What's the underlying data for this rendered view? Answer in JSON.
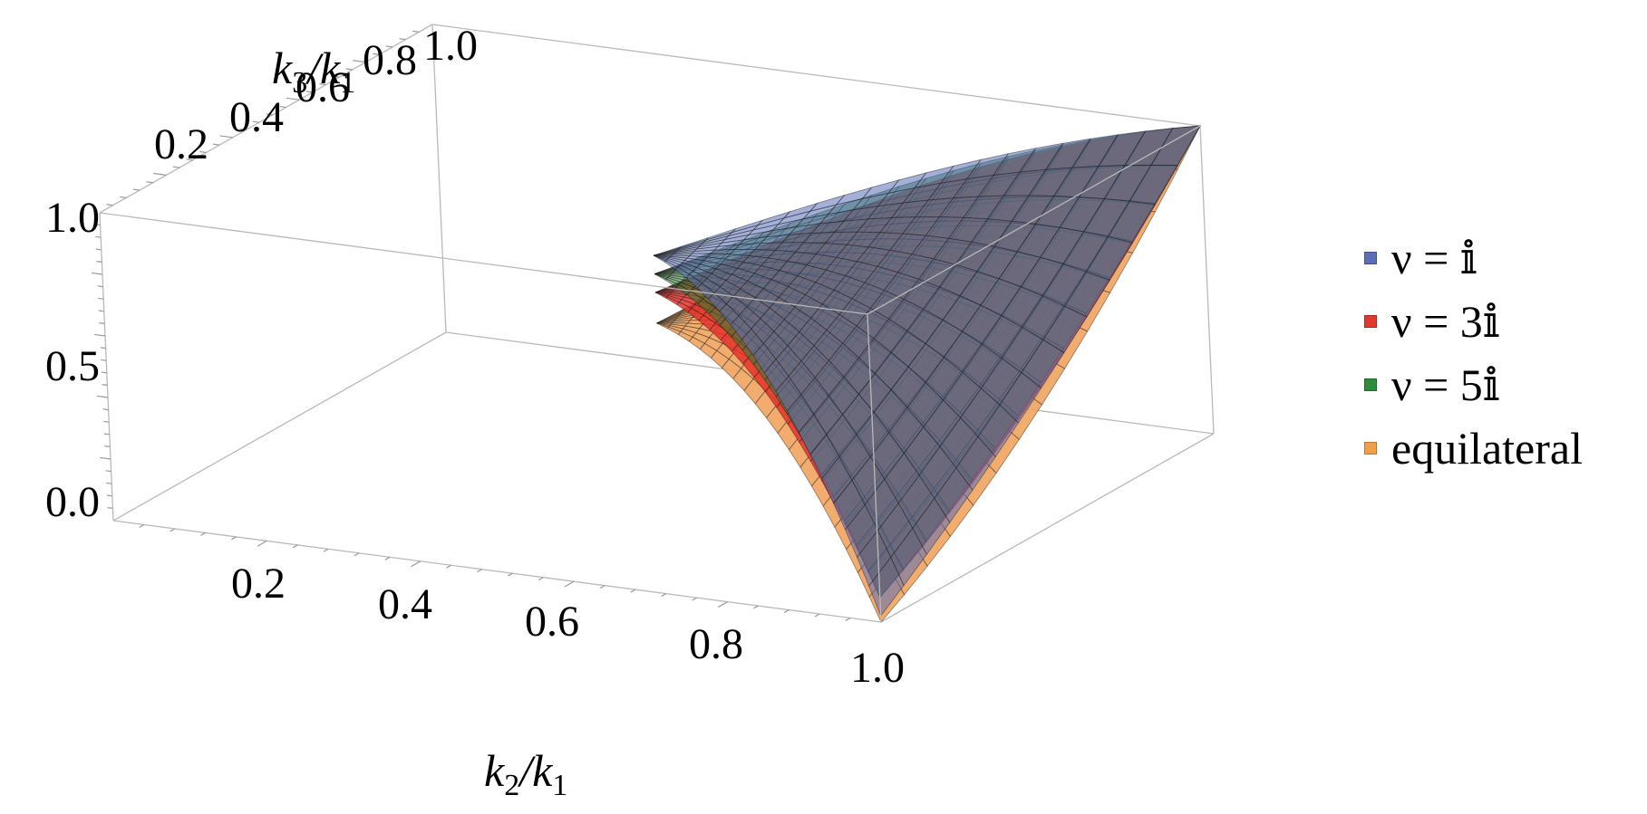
{
  "chart_data": {
    "type": "surface3d",
    "x_axis": {
      "label_main": "k",
      "label_sub1": "2",
      "label_div": "/k",
      "label_sub2": "1",
      "ticks": [
        "0.2",
        "0.4",
        "0.6",
        "0.8",
        "1.0"
      ],
      "range": [
        0,
        1
      ]
    },
    "y_axis": {
      "label_main": "k",
      "label_sub1": "3",
      "label_div": "/k",
      "label_sub2": "1",
      "ticks": [
        "0.2",
        "0.4",
        "0.6",
        "0.8",
        "1.0"
      ],
      "range": [
        0,
        1
      ]
    },
    "z_axis": {
      "ticks": [
        "0.0",
        "0.5",
        "1.0"
      ],
      "range": [
        0,
        1
      ]
    },
    "domain": "1 - k2/k1 <= k3/k1 <= k2/k1",
    "series": [
      {
        "name": "ν = 𝕚",
        "color": "#5a6fb8",
        "opacity": 0.55,
        "values": {
          "corner_x0.5_y0.5": 0.72,
          "edge_x1_y0": 0.02,
          "equilateral_x1_y1": 1.0
        }
      },
      {
        "name": "ν = 3𝕚",
        "color": "#e8302a",
        "opacity": 0.85,
        "values": {
          "corner_x0.5_y0.5": 0.6,
          "edge_x1_y0": 0.08,
          "equilateral_x1_y1": 1.0
        }
      },
      {
        "name": "ν = 5𝕚",
        "color": "#2e7d32",
        "opacity": 0.55,
        "values": {
          "corner_x0.5_y0.5": 0.66,
          "edge_x1_y0": 0.08,
          "equilateral_x1_y1": 1.0
        }
      },
      {
        "name": "equilateral",
        "color": "#f0a35e",
        "opacity": 0.9,
        "values": {
          "corner_x0.5_y0.5": 0.5,
          "edge_x1_y0": 0.0,
          "equilateral_x1_y1": 1.0
        }
      }
    ]
  },
  "legend": {
    "items": [
      {
        "label": "ν = 𝕚",
        "color": "#5a6fb8"
      },
      {
        "label": "ν = 3𝕚",
        "color": "#e03a2e"
      },
      {
        "label": "ν = 5𝕚",
        "color": "#2e8b3a"
      },
      {
        "label": "equilateral",
        "color": "#f0a04b"
      }
    ]
  }
}
